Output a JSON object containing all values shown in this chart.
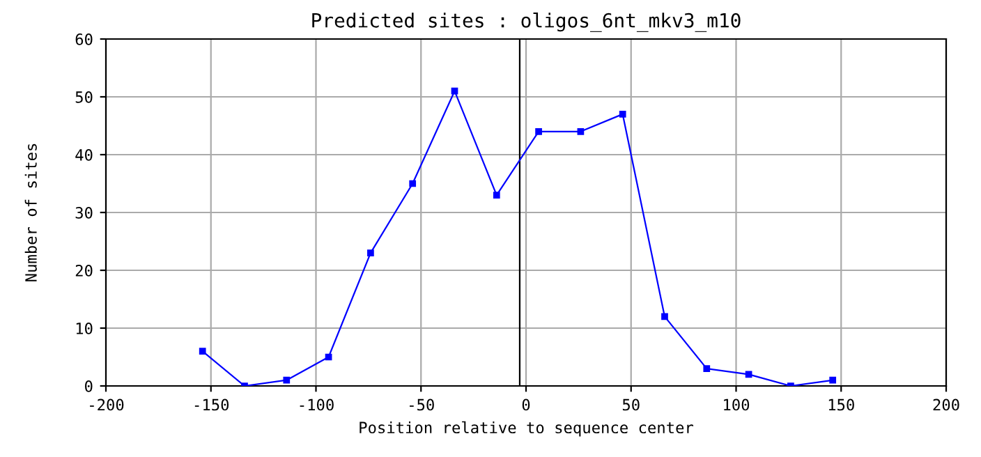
{
  "chart_data": {
    "type": "line",
    "title": "Predicted sites : oligos_6nt_mkv3_m10",
    "xlabel": "Position relative to sequence center",
    "ylabel": "Number of sites",
    "x": [
      -154,
      -134,
      -114,
      -94,
      -74,
      -54,
      -34,
      -14,
      6,
      26,
      46,
      66,
      86,
      106,
      126,
      146
    ],
    "series": [
      {
        "color": "#0000ff",
        "values": [
          6,
          0,
          1,
          5,
          23,
          35,
          51,
          33,
          44,
          44,
          47,
          12,
          3,
          2,
          0,
          1
        ]
      }
    ],
    "xlim": [
      -200,
      200
    ],
    "xticks": [
      -200,
      -150,
      -100,
      -50,
      0,
      50,
      100,
      150,
      200
    ],
    "ylim": [
      0,
      60
    ],
    "yticks": [
      0,
      10,
      20,
      30,
      40,
      50,
      60
    ],
    "grid": true,
    "marker": "square",
    "line_style": "solid",
    "ref_lines": [
      {
        "axis": "x",
        "value": -3,
        "color": "#000000"
      }
    ]
  }
}
